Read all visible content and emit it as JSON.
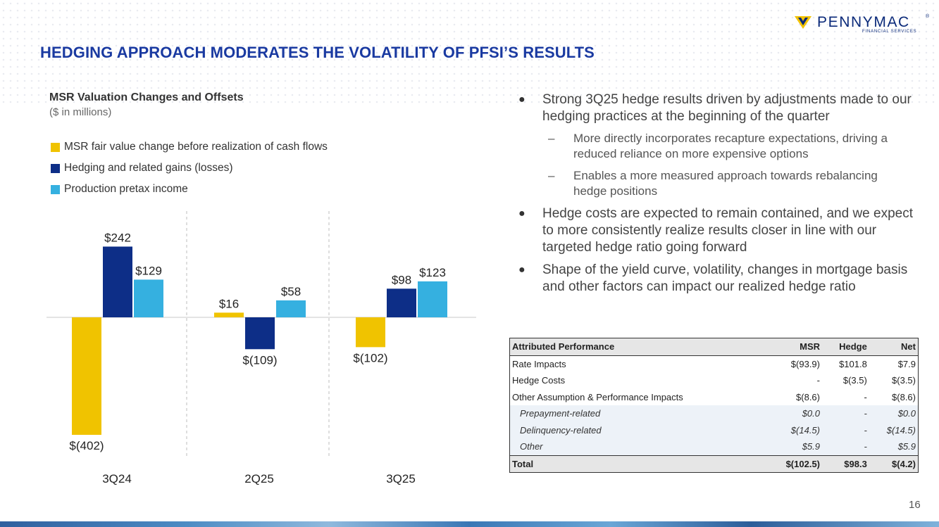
{
  "brand": {
    "name": "PENNYMAC",
    "registered": "®",
    "sub": "FINANCIAL SERVICES",
    "colors": {
      "navy": "#0b2a7a",
      "yellow": "#f2c200",
      "blue": "#1a3aa1"
    }
  },
  "page": {
    "title": "HEDGING APPROACH MODERATES THE VOLATILITY OF PFSI’S RESULTS",
    "number": "16"
  },
  "chart_data": {
    "type": "bar",
    "title": "MSR Valuation Changes and Offsets",
    "subtitle": "($ in millions)",
    "categories": [
      "3Q24",
      "2Q25",
      "3Q25"
    ],
    "series": [
      {
        "name": "MSR fair value change before realization of cash flows",
        "color": "#f0c300",
        "values": [
          -402,
          16,
          -102
        ],
        "labels": [
          "$(402)",
          "$16",
          "$(102)"
        ]
      },
      {
        "name": "Hedging and related gains (losses)",
        "color": "#0d2e87",
        "values": [
          242,
          -109,
          98
        ],
        "labels": [
          "$242",
          "$(109)",
          "$98"
        ]
      },
      {
        "name": "Production pretax income",
        "color": "#35b0e0",
        "values": [
          129,
          58,
          123
        ],
        "labels": [
          "$129",
          "$58",
          "$123"
        ]
      }
    ],
    "ylim": [
      -402,
      242
    ],
    "grid": false,
    "legend": "top-left"
  },
  "bullets": [
    {
      "text": "Strong 3Q25 hedge results driven by adjustments made to our hedging practices at the beginning of the quarter",
      "sub": [
        "More directly incorporates recapture expectations, driving a reduced reliance on more expensive options",
        "Enables a more measured approach towards rebalancing hedge positions"
      ]
    },
    {
      "text": "Hedge costs are expected to remain contained, and we expect to more consistently realize results closer in line with our targeted hedge ratio going forward",
      "sub": []
    },
    {
      "text": "Shape of the yield curve, volatility, changes in mortgage basis and other factors can impact our realized hedge ratio",
      "sub": []
    }
  ],
  "table": {
    "headers": [
      "Attributed Performance",
      "MSR",
      "Hedge",
      "Net"
    ],
    "rows": [
      {
        "cells": [
          "Rate Impacts",
          "$(93.9)",
          "$101.8",
          "$7.9"
        ],
        "kind": "normal"
      },
      {
        "cells": [
          "Hedge Costs",
          "-",
          "$(3.5)",
          "$(3.5)"
        ],
        "kind": "normal"
      },
      {
        "cells": [
          "Other Assumption & Performance Impacts",
          "$(8.6)",
          "-",
          "$(8.6)"
        ],
        "kind": "normal"
      },
      {
        "cells": [
          "Prepayment-related",
          "$0.0",
          "-",
          "$0.0"
        ],
        "kind": "sub"
      },
      {
        "cells": [
          "Delinquency-related",
          "$(14.5)",
          "-",
          "$(14.5)"
        ],
        "kind": "sub"
      },
      {
        "cells": [
          "Other",
          "$5.9",
          "-",
          "$5.9"
        ],
        "kind": "sub"
      },
      {
        "cells": [
          "Total",
          "$(102.5)",
          "$98.3",
          "$(4.2)"
        ],
        "kind": "total"
      }
    ]
  }
}
